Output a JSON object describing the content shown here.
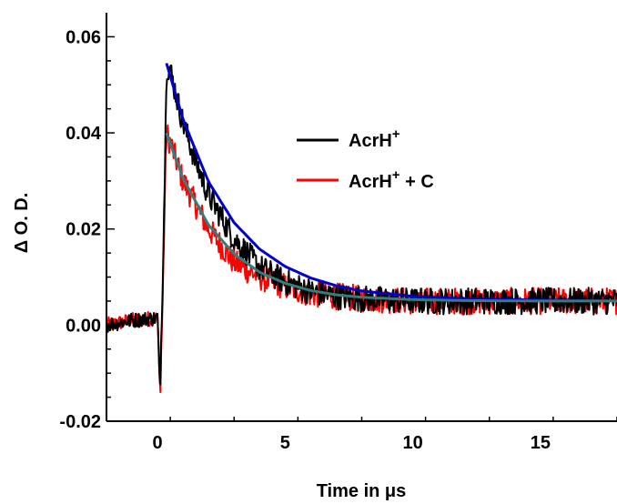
{
  "chart_data": {
    "type": "line",
    "xlabel": "Time in μs",
    "ylabel": "Δ O. D.",
    "xlim": [
      -2.0,
      18.0
    ],
    "ylim": [
      -0.02,
      0.065
    ],
    "xticks": [
      0,
      5,
      10,
      15
    ],
    "xtick_labels": [
      "0",
      "5",
      "10",
      "15"
    ],
    "yticks": [
      -0.02,
      0.0,
      0.02,
      0.04,
      0.06
    ],
    "ytick_labels": [
      "-0.02",
      "0.00",
      "0.02",
      "0.04",
      "0.06"
    ],
    "grid": false,
    "legend_position": "upper-right",
    "series": [
      {
        "name": "AcrH+",
        "legend_base": "AcrH",
        "legend_sup": "+",
        "legend_suffix": "",
        "color": "#000000",
        "kind": "noisy-data",
        "x": [
          -2.0,
          -1.0,
          0.0,
          0.05,
          0.1,
          0.2,
          0.3,
          0.35,
          0.5,
          1.0,
          1.5,
          2.0,
          3.0,
          4.0,
          5.0,
          6.0,
          7.0,
          8.0,
          10.0,
          12.0,
          15.0,
          18.0
        ],
        "y": [
          0.0,
          0.001,
          0.0015,
          -0.008,
          -0.013,
          0.01,
          0.035,
          0.054,
          0.053,
          0.042,
          0.034,
          0.027,
          0.018,
          0.012,
          0.009,
          0.007,
          0.006,
          0.0055,
          0.005,
          0.005,
          0.005,
          0.005
        ]
      },
      {
        "name": "AcrH+ + C",
        "legend_base": "AcrH",
        "legend_sup": "+",
        "legend_suffix": " + C",
        "color": "#ff0000",
        "kind": "noisy-data",
        "x": [
          -2.0,
          -1.0,
          0.0,
          0.05,
          0.1,
          0.2,
          0.3,
          0.35,
          0.5,
          1.0,
          1.5,
          2.0,
          3.0,
          4.0,
          5.0,
          6.0,
          7.0,
          8.0,
          10.0,
          12.0,
          15.0,
          18.0
        ],
        "y": [
          0.0,
          0.001,
          0.0015,
          -0.008,
          -0.014,
          0.005,
          0.03,
          0.04,
          0.038,
          0.03,
          0.025,
          0.02,
          0.013,
          0.01,
          0.008,
          0.0065,
          0.006,
          0.0055,
          0.005,
          0.005,
          0.005,
          0.005
        ]
      },
      {
        "color": "#0000cc",
        "kind": "fit",
        "x": [
          0.35,
          1.0,
          2.0,
          3.0,
          4.0,
          5.0,
          6.0,
          7.0,
          8.0,
          10.0,
          12.0,
          15.0,
          18.0
        ],
        "y": [
          0.0545,
          0.0428,
          0.0298,
          0.0213,
          0.0158,
          0.0122,
          0.0098,
          0.0082,
          0.0071,
          0.006,
          0.0055,
          0.0052,
          0.0051
        ]
      },
      {
        "color": "#2f7f7f",
        "kind": "fit",
        "x": [
          0.35,
          1.0,
          2.0,
          3.0,
          4.0,
          5.0,
          6.0,
          7.0,
          8.0,
          10.0,
          12.0,
          15.0,
          18.0
        ],
        "y": [
          0.04,
          0.0305,
          0.0208,
          0.0148,
          0.011,
          0.0087,
          0.0072,
          0.0063,
          0.0058,
          0.0053,
          0.0051,
          0.005,
          0.005
        ]
      }
    ]
  }
}
